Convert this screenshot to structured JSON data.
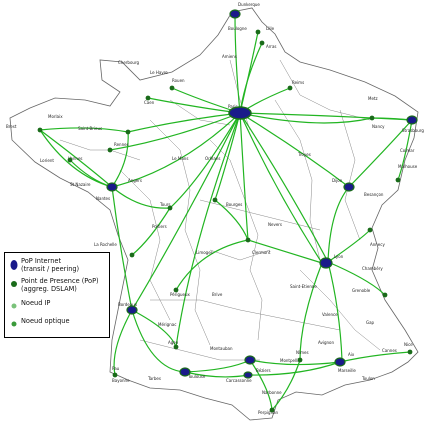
{
  "colors": {
    "link": "#22b522",
    "pop_node": "#1a6b1a",
    "internet_fill": "#1a1a8a",
    "internet_ring": "#1a6b1a",
    "border": "#666666",
    "ip_node": "#7ac27a",
    "optic_node": "#3a9a3a"
  },
  "legend": {
    "items": [
      {
        "symbol": "internet",
        "label": "PoP Internet\n(transit / peering)"
      },
      {
        "symbol": "pop",
        "label": "Point de Presence (PoP)\n(aggreg. DSLAM)"
      },
      {
        "symbol": "ip",
        "label": "Noeud IP"
      },
      {
        "symbol": "optic",
        "label": "Noeud optique"
      }
    ]
  },
  "cities": [
    {
      "name": "Dunkerque"
    },
    {
      "name": "Boulogne"
    },
    {
      "name": "Lille"
    },
    {
      "name": "Arras"
    },
    {
      "name": "Cherbourg"
    },
    {
      "name": "Caen"
    },
    {
      "name": "Le Havre"
    },
    {
      "name": "Rouen"
    },
    {
      "name": "Amiens"
    },
    {
      "name": "Reims"
    },
    {
      "name": "Metz"
    },
    {
      "name": "Nancy"
    },
    {
      "name": "Strasbourg"
    },
    {
      "name": "Colmar"
    },
    {
      "name": "Mulhouse"
    },
    {
      "name": "Brest"
    },
    {
      "name": "Morlaix"
    },
    {
      "name": "Saint-Brieuc"
    },
    {
      "name": "Rennes"
    },
    {
      "name": "Lorient"
    },
    {
      "name": "Vannes"
    },
    {
      "name": "St Nazaire"
    },
    {
      "name": "Nantes"
    },
    {
      "name": "Angers"
    },
    {
      "name": "Le Mans"
    },
    {
      "name": "Tours"
    },
    {
      "name": "Orléans"
    },
    {
      "name": "Troyes"
    },
    {
      "name": "Dijon"
    },
    {
      "name": "Besançon"
    },
    {
      "name": "Bourges"
    },
    {
      "name": "Nevers"
    },
    {
      "name": "Poitiers"
    },
    {
      "name": "La Rochelle"
    },
    {
      "name": "Limoges"
    },
    {
      "name": "Clermont"
    },
    {
      "name": "Lyon"
    },
    {
      "name": "Grenoble"
    },
    {
      "name": "Chambéry"
    },
    {
      "name": "Annecy"
    },
    {
      "name": "Saint-Etienne"
    },
    {
      "name": "Valence"
    },
    {
      "name": "Bordeaux"
    },
    {
      "name": "Mérignac"
    },
    {
      "name": "Périgueux"
    },
    {
      "name": "Brive"
    },
    {
      "name": "Agen"
    },
    {
      "name": "Toulouse"
    },
    {
      "name": "Montauban"
    },
    {
      "name": "Pau"
    },
    {
      "name": "Bayonne"
    },
    {
      "name": "Tarbes"
    },
    {
      "name": "Carcassonne"
    },
    {
      "name": "Narbonne"
    },
    {
      "name": "Perpignan"
    },
    {
      "name": "Béziers"
    },
    {
      "name": "Montpellier"
    },
    {
      "name": "Nîmes"
    },
    {
      "name": "Avignon"
    },
    {
      "name": "Marseille"
    },
    {
      "name": "Aix"
    },
    {
      "name": "Toulon"
    },
    {
      "name": "Nice"
    },
    {
      "name": "Cannes"
    },
    {
      "name": "Gap"
    },
    {
      "name": "Paris"
    }
  ]
}
